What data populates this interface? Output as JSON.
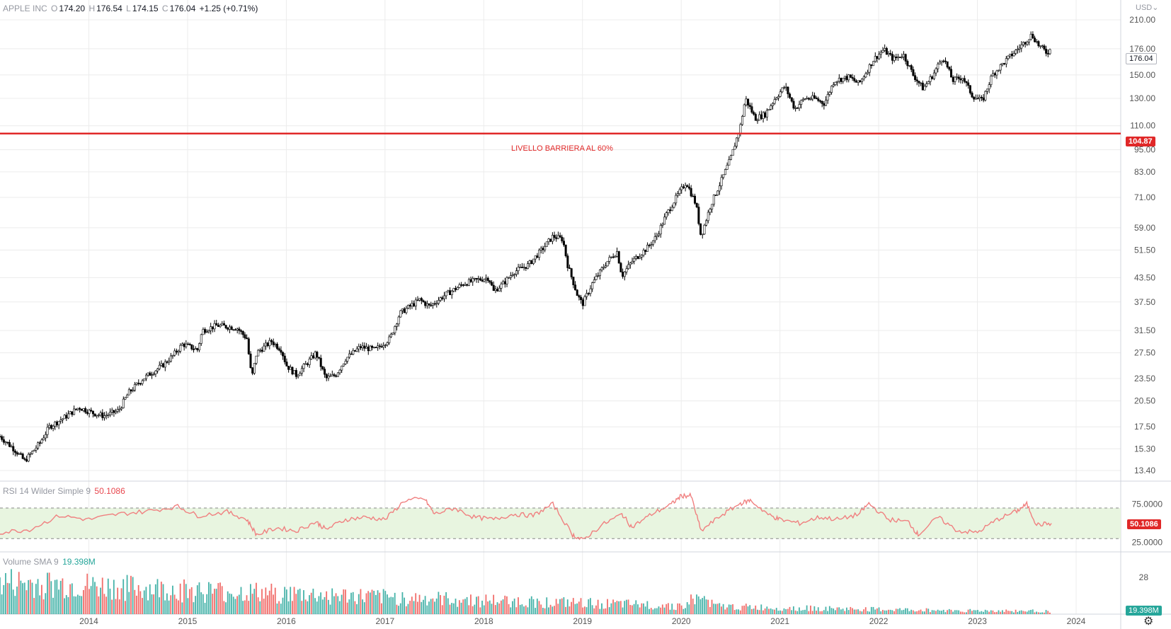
{
  "header": {
    "symbol": "APPLE INC",
    "open_key": "O",
    "open": "174.20",
    "high_key": "H",
    "high": "176.54",
    "low_key": "L",
    "low": "174.15",
    "close_key": "C",
    "close": "176.04",
    "change": "+1.25 (+0.71%)"
  },
  "currency": "USD",
  "barrier": {
    "label": "LIVELLO BARRIERA AL 60%",
    "value": 104.87,
    "value_label": "104.87",
    "color": "#e02828"
  },
  "last_price_label": "176.04",
  "rsi": {
    "title": "RSI 14 Wilder Simple 9",
    "value": "50.1086",
    "upper": 70,
    "lower": 30,
    "ticks": [
      "75.0000",
      "25.0000"
    ],
    "color": "#f08080",
    "band_color": "#e8f5e0",
    "series_approx": [
      [
        2013.1,
        38
      ],
      [
        2013.4,
        42
      ],
      [
        2013.7,
        60
      ],
      [
        2014.0,
        55
      ],
      [
        2014.3,
        62
      ],
      [
        2014.6,
        66
      ],
      [
        2014.9,
        72
      ],
      [
        2015.1,
        60
      ],
      [
        2015.4,
        65
      ],
      [
        2015.6,
        55
      ],
      [
        2015.7,
        35
      ],
      [
        2015.9,
        44
      ],
      [
        2016.1,
        40
      ],
      [
        2016.3,
        52
      ],
      [
        2016.4,
        42
      ],
      [
        2016.6,
        55
      ],
      [
        2016.8,
        58
      ],
      [
        2017.0,
        55
      ],
      [
        2017.2,
        80
      ],
      [
        2017.4,
        82
      ],
      [
        2017.5,
        62
      ],
      [
        2017.7,
        70
      ],
      [
        2017.9,
        58
      ],
      [
        2018.1,
        55
      ],
      [
        2018.3,
        62
      ],
      [
        2018.5,
        60
      ],
      [
        2018.7,
        75
      ],
      [
        2018.9,
        35
      ],
      [
        2019.0,
        28
      ],
      [
        2019.2,
        48
      ],
      [
        2019.4,
        62
      ],
      [
        2019.5,
        45
      ],
      [
        2019.7,
        62
      ],
      [
        2019.9,
        75
      ],
      [
        2020.0,
        86
      ],
      [
        2020.1,
        86
      ],
      [
        2020.2,
        40
      ],
      [
        2020.4,
        60
      ],
      [
        2020.6,
        76
      ],
      [
        2020.7,
        80
      ],
      [
        2020.9,
        60
      ],
      [
        2021.0,
        55
      ],
      [
        2021.2,
        50
      ],
      [
        2021.4,
        58
      ],
      [
        2021.6,
        55
      ],
      [
        2021.8,
        62
      ],
      [
        2021.9,
        76
      ],
      [
        2022.1,
        55
      ],
      [
        2022.3,
        52
      ],
      [
        2022.4,
        35
      ],
      [
        2022.6,
        58
      ],
      [
        2022.8,
        40
      ],
      [
        2023.0,
        38
      ],
      [
        2023.2,
        55
      ],
      [
        2023.4,
        66
      ],
      [
        2023.5,
        75
      ],
      [
        2023.6,
        48
      ],
      [
        2023.75,
        50
      ]
    ]
  },
  "volume": {
    "title": "Volume SMA 9",
    "value": "19.398M",
    "tick": "28",
    "last_label": "19.398M",
    "up_color": "#26a69a",
    "down_color": "#ef5350"
  },
  "chart_data": {
    "type": "candlestick",
    "title": "APPLE INC",
    "y_scale": "log",
    "ylim": [
      13.0,
      230
    ],
    "y_ticks": [
      "210.00",
      "176.00",
      "150.00",
      "130.00",
      "110.00",
      "95.00",
      "83.00",
      "71.00",
      "59.00",
      "51.50",
      "43.50",
      "37.50",
      "31.50",
      "27.50",
      "23.50",
      "20.50",
      "17.50",
      "15.30",
      "13.40"
    ],
    "x_ticks": [
      "2014",
      "2015",
      "2016",
      "2017",
      "2018",
      "2019",
      "2020",
      "2021",
      "2022",
      "2023",
      "2024"
    ],
    "xlim": [
      2013.1,
      2024.0
    ],
    "grid": true,
    "close_path_approx": [
      [
        2013.1,
        16.5
      ],
      [
        2013.25,
        15.2
      ],
      [
        2013.35,
        14.2
      ],
      [
        2013.5,
        15.8
      ],
      [
        2013.6,
        17.5
      ],
      [
        2013.75,
        18.5
      ],
      [
        2013.9,
        19.7
      ],
      [
        2014.05,
        19.0
      ],
      [
        2014.15,
        18.7
      ],
      [
        2014.3,
        19.3
      ],
      [
        2014.4,
        21.5
      ],
      [
        2014.55,
        23.5
      ],
      [
        2014.75,
        25.5
      ],
      [
        2014.85,
        27.0
      ],
      [
        2014.95,
        29.0
      ],
      [
        2015.1,
        28.0
      ],
      [
        2015.15,
        31.5
      ],
      [
        2015.3,
        32.5
      ],
      [
        2015.5,
        32.0
      ],
      [
        2015.6,
        30.0
      ],
      [
        2015.65,
        23.5
      ],
      [
        2015.7,
        27.5
      ],
      [
        2015.85,
        29.5
      ],
      [
        2015.95,
        28.0
      ],
      [
        2016.0,
        25.5
      ],
      [
        2016.1,
        24.0
      ],
      [
        2016.25,
        26.5
      ],
      [
        2016.3,
        27.5
      ],
      [
        2016.4,
        23.5
      ],
      [
        2016.5,
        24.0
      ],
      [
        2016.6,
        26.5
      ],
      [
        2016.75,
        28.5
      ],
      [
        2016.9,
        28.0
      ],
      [
        2017.05,
        30.0
      ],
      [
        2017.15,
        35.0
      ],
      [
        2017.35,
        38.0
      ],
      [
        2017.45,
        36.5
      ],
      [
        2017.6,
        39.0
      ],
      [
        2017.8,
        42.0
      ],
      [
        2017.95,
        43.0
      ],
      [
        2018.05,
        43.5
      ],
      [
        2018.1,
        40.0
      ],
      [
        2018.2,
        42.0
      ],
      [
        2018.3,
        45.0
      ],
      [
        2018.45,
        47.0
      ],
      [
        2018.6,
        52.0
      ],
      [
        2018.7,
        56.0
      ],
      [
        2018.8,
        55.0
      ],
      [
        2018.85,
        47.0
      ],
      [
        2018.95,
        39.0
      ],
      [
        2019.0,
        37.0
      ],
      [
        2019.1,
        42.0
      ],
      [
        2019.25,
        48.0
      ],
      [
        2019.35,
        51.0
      ],
      [
        2019.4,
        44.0
      ],
      [
        2019.5,
        48.0
      ],
      [
        2019.65,
        52.0
      ],
      [
        2019.75,
        56.0
      ],
      [
        2019.85,
        64.0
      ],
      [
        2019.95,
        71.0
      ],
      [
        2020.05,
        78.0
      ],
      [
        2020.15,
        68.0
      ],
      [
        2020.2,
        56.0
      ],
      [
        2020.3,
        68.0
      ],
      [
        2020.4,
        78.0
      ],
      [
        2020.5,
        90.0
      ],
      [
        2020.6,
        110.0
      ],
      [
        2020.65,
        130.0
      ],
      [
        2020.75,
        115.0
      ],
      [
        2020.85,
        118.0
      ],
      [
        2020.95,
        130.0
      ],
      [
        2021.05,
        140.0
      ],
      [
        2021.15,
        122.0
      ],
      [
        2021.25,
        130.0
      ],
      [
        2021.35,
        130.0
      ],
      [
        2021.45,
        126.0
      ],
      [
        2021.55,
        145.0
      ],
      [
        2021.7,
        148.0
      ],
      [
        2021.8,
        142.0
      ],
      [
        2021.95,
        165.0
      ],
      [
        2022.05,
        175.0
      ],
      [
        2022.15,
        165.0
      ],
      [
        2022.25,
        170.0
      ],
      [
        2022.35,
        150.0
      ],
      [
        2022.45,
        138.0
      ],
      [
        2022.55,
        150.0
      ],
      [
        2022.65,
        168.0
      ],
      [
        2022.75,
        145.0
      ],
      [
        2022.85,
        148.0
      ],
      [
        2022.95,
        132.0
      ],
      [
        2023.05,
        128.0
      ],
      [
        2023.15,
        150.0
      ],
      [
        2023.3,
        165.0
      ],
      [
        2023.45,
        180.0
      ],
      [
        2023.55,
        192.0
      ],
      [
        2023.62,
        180.0
      ],
      [
        2023.7,
        172.0
      ],
      [
        2023.75,
        176.04
      ]
    ]
  }
}
